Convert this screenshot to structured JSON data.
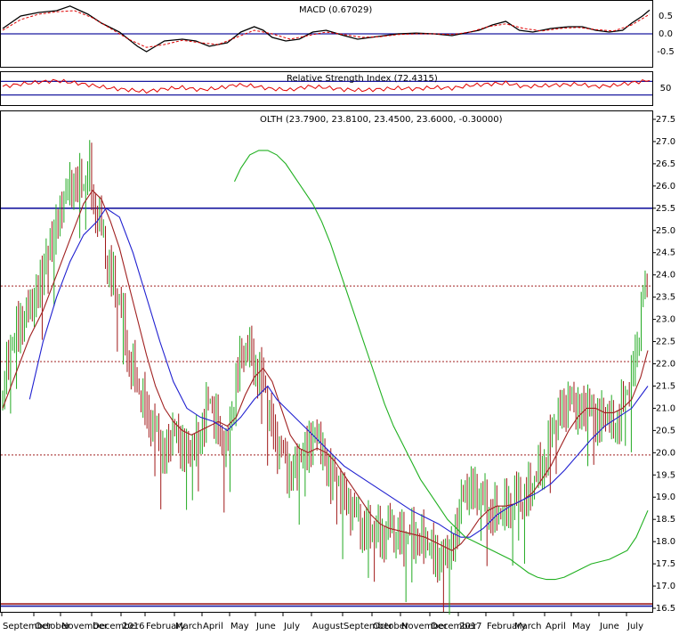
{
  "chart_data": [
    {
      "panel": "macd",
      "type": "line",
      "title": "MACD (0.67029)",
      "ylim": [
        -0.85,
        0.85
      ],
      "yticks": [
        "0.5",
        "0.0",
        "-0.5"
      ],
      "zero_line": 0,
      "series": [
        {
          "role": "macd",
          "color": "#000000",
          "x": [
            0,
            20,
            40,
            60,
            75,
            95,
            110,
            130,
            150,
            160,
            180,
            200,
            215,
            230,
            250,
            265,
            280,
            290,
            300,
            315,
            330,
            345,
            360,
            380,
            395,
            410,
            425,
            440,
            460,
            480,
            500,
            520,
            530,
            545,
            560,
            575,
            590,
            610,
            630,
            645,
            660,
            675,
            690,
            700,
            712,
            720
          ],
          "y": [
            0.15,
            0.5,
            0.6,
            0.65,
            0.78,
            0.55,
            0.3,
            0.05,
            -0.35,
            -0.5,
            -0.2,
            -0.15,
            -0.2,
            -0.35,
            -0.25,
            0.05,
            0.2,
            0.1,
            -0.1,
            -0.2,
            -0.15,
            0.05,
            0.1,
            -0.05,
            -0.15,
            -0.1,
            -0.05,
            0.0,
            0.02,
            0.0,
            -0.05,
            0.05,
            0.1,
            0.25,
            0.35,
            0.1,
            0.05,
            0.15,
            0.2,
            0.2,
            0.1,
            0.05,
            0.1,
            0.3,
            0.5,
            0.67
          ]
        },
        {
          "role": "signal",
          "color": "#e00000",
          "x": [
            0,
            20,
            40,
            60,
            80,
            100,
            120,
            140,
            160,
            180,
            200,
            220,
            240,
            260,
            280,
            300,
            320,
            340,
            360,
            380,
            400,
            420,
            440,
            460,
            480,
            500,
            520,
            540,
            560,
            580,
            600,
            620,
            640,
            660,
            680,
            700,
            720
          ],
          "y": [
            0.1,
            0.4,
            0.55,
            0.62,
            0.65,
            0.45,
            0.15,
            -0.15,
            -0.38,
            -0.3,
            -0.18,
            -0.25,
            -0.3,
            -0.1,
            0.1,
            0.0,
            -0.15,
            -0.05,
            0.05,
            -0.02,
            -0.1,
            -0.08,
            -0.02,
            0.0,
            0.0,
            -0.02,
            0.05,
            0.2,
            0.28,
            0.15,
            0.08,
            0.15,
            0.18,
            0.12,
            0.08,
            0.25,
            0.55
          ]
        }
      ]
    },
    {
      "panel": "rsi",
      "type": "line",
      "title": "Relative Strength Index (72.4315)",
      "ylim": [
        0,
        100
      ],
      "yticks": [
        "50"
      ],
      "levels": [
        70,
        30
      ],
      "series": [
        {
          "role": "rsi",
          "color": "#e00000",
          "x": [
            0,
            20,
            40,
            60,
            80,
            100,
            120,
            140,
            160,
            180,
            200,
            220,
            240,
            260,
            280,
            300,
            320,
            340,
            360,
            380,
            400,
            420,
            440,
            460,
            480,
            500,
            520,
            540,
            560,
            580,
            600,
            620,
            640,
            660,
            680,
            700,
            720
          ],
          "y": [
            55,
            62,
            68,
            72,
            66,
            58,
            50,
            45,
            40,
            48,
            52,
            45,
            50,
            60,
            56,
            48,
            45,
            55,
            52,
            46,
            44,
            47,
            50,
            48,
            52,
            50,
            58,
            62,
            65,
            55,
            57,
            60,
            62,
            55,
            58,
            66,
            72.4
          ]
        }
      ]
    },
    {
      "panel": "price",
      "type": "ohlc",
      "title": "OLTH (23.7900, 23.8100, 23.4500, 23.6000, -0.30000)",
      "ylim": [
        16.4,
        27.7
      ],
      "yticks": [
        "27.5",
        "27.0",
        "26.5",
        "26.0",
        "25.5",
        "25.0",
        "24.5",
        "24.0",
        "23.5",
        "23.0",
        "22.5",
        "22.0",
        "21.5",
        "21.0",
        "20.5",
        "20.0",
        "19.5",
        "19.0",
        "18.5",
        "18.0",
        "17.5",
        "17.0",
        "16.5"
      ],
      "xticks": [
        "September",
        "October",
        "November",
        "December",
        "2016",
        "February",
        "March",
        "April",
        "May",
        "June",
        "July",
        "August",
        "September",
        "October",
        "November",
        "December",
        "2017",
        "February",
        "March",
        "April",
        "May",
        "June",
        "July"
      ],
      "xtick_pos": [
        2,
        38,
        68,
        103,
        136,
        163,
        196,
        227,
        258,
        287,
        318,
        350,
        385,
        418,
        450,
        483,
        515,
        546,
        577,
        612,
        642,
        673,
        704
      ],
      "hlines": [
        {
          "value": 25.5,
          "color": "#1a1aa0",
          "style": "solid"
        },
        {
          "value": 23.75,
          "color": "#a02020",
          "style": "dotted"
        },
        {
          "value": 22.05,
          "color": "#a02020",
          "style": "dotted"
        },
        {
          "value": 19.95,
          "color": "#a02020",
          "style": "dotted"
        },
        {
          "value": 16.6,
          "color": "#a02020",
          "style": "solid"
        },
        {
          "value": 16.55,
          "color": "#1a1aa0",
          "style": "solid"
        }
      ],
      "close_path": {
        "x": [
          0,
          10,
          20,
          30,
          40,
          50,
          60,
          70,
          80,
          90,
          96,
          100,
          110,
          118,
          125,
          132,
          140,
          150,
          160,
          170,
          180,
          190,
          200,
          210,
          220,
          230,
          240,
          250,
          260,
          270,
          280,
          290,
          300,
          310,
          320,
          330,
          340,
          350,
          360,
          370,
          380,
          390,
          400,
          410,
          420,
          430,
          440,
          450,
          460,
          470,
          480,
          490,
          500,
          510,
          520,
          530,
          540,
          550,
          560,
          570,
          580,
          590,
          600,
          610,
          620,
          630,
          640,
          650,
          660,
          670,
          680,
          690,
          700,
          706,
          712,
          718
        ],
        "y": [
          21.4,
          22.5,
          23.0,
          23.2,
          23.8,
          24.5,
          25.2,
          25.8,
          26.2,
          26.0,
          26.5,
          25.8,
          25.0,
          24.2,
          23.8,
          23.2,
          22.2,
          21.5,
          21.0,
          20.5,
          20.0,
          20.5,
          20.2,
          20.0,
          20.5,
          21.2,
          20.6,
          20.0,
          21.8,
          22.4,
          22.1,
          21.6,
          20.6,
          20.0,
          19.6,
          19.8,
          20.3,
          20.4,
          19.8,
          19.4,
          19.1,
          18.7,
          18.4,
          18.3,
          18.2,
          18.3,
          18.2,
          18.1,
          18.2,
          18.0,
          17.8,
          17.6,
          17.9,
          18.9,
          19.3,
          19.1,
          18.8,
          18.6,
          18.8,
          19.0,
          19.0,
          19.3,
          19.7,
          20.4,
          21.0,
          21.2,
          21.0,
          21.1,
          20.8,
          20.9,
          20.6,
          21.1,
          21.7,
          22.5,
          23.5,
          23.6
        ]
      },
      "series": [
        {
          "role": "ma-short",
          "color": "#a02020",
          "x": [
            0,
            15,
            30,
            45,
            60,
            75,
            90,
            100,
            110,
            120,
            130,
            140,
            150,
            160,
            170,
            180,
            190,
            200,
            210,
            220,
            230,
            240,
            250,
            260,
            270,
            280,
            290,
            300,
            310,
            320,
            330,
            340,
            350,
            360,
            370,
            380,
            390,
            400,
            410,
            420,
            430,
            440,
            450,
            460,
            470,
            480,
            490,
            500,
            510,
            520,
            530,
            540,
            550,
            560,
            570,
            580,
            590,
            600,
            610,
            620,
            630,
            640,
            650,
            660,
            670,
            680,
            690,
            700,
            710,
            718
          ],
          "y": [
            21.0,
            21.8,
            22.6,
            23.2,
            24.0,
            24.8,
            25.6,
            25.9,
            25.7,
            25.2,
            24.6,
            23.8,
            23.0,
            22.2,
            21.5,
            21.0,
            20.7,
            20.5,
            20.4,
            20.5,
            20.6,
            20.7,
            20.6,
            20.8,
            21.3,
            21.7,
            21.9,
            21.6,
            21.0,
            20.4,
            20.1,
            20.0,
            20.1,
            20.0,
            19.8,
            19.5,
            19.2,
            18.9,
            18.6,
            18.4,
            18.3,
            18.25,
            18.2,
            18.15,
            18.1,
            18.0,
            17.9,
            17.8,
            17.95,
            18.2,
            18.5,
            18.7,
            18.8,
            18.8,
            18.85,
            18.95,
            19.1,
            19.4,
            19.7,
            20.1,
            20.5,
            20.8,
            21.0,
            21.0,
            20.9,
            20.9,
            21.0,
            21.2,
            21.7,
            22.3
          ]
        },
        {
          "role": "ma-medium",
          "color": "#2020d0",
          "x": [
            30,
            45,
            60,
            75,
            90,
            105,
            115,
            130,
            145,
            160,
            175,
            190,
            205,
            220,
            235,
            250,
            265,
            280,
            295,
            305,
            320,
            335,
            350,
            365,
            380,
            395,
            410,
            425,
            440,
            455,
            470,
            485,
            500,
            510,
            520,
            535,
            550,
            565,
            580,
            595,
            610,
            625,
            640,
            655,
            670,
            685,
            700,
            718
          ],
          "y": [
            21.2,
            22.5,
            23.5,
            24.3,
            24.9,
            25.2,
            25.5,
            25.3,
            24.5,
            23.5,
            22.5,
            21.6,
            21.0,
            20.8,
            20.7,
            20.5,
            20.8,
            21.2,
            21.5,
            21.2,
            20.9,
            20.6,
            20.3,
            20.0,
            19.7,
            19.5,
            19.3,
            19.1,
            18.9,
            18.7,
            18.55,
            18.4,
            18.2,
            18.1,
            18.1,
            18.3,
            18.6,
            18.8,
            18.95,
            19.1,
            19.3,
            19.6,
            19.95,
            20.3,
            20.6,
            20.8,
            21.0,
            21.5
          ]
        },
        {
          "role": "ma-long",
          "color": "#20b020",
          "x": [
            258,
            265,
            275,
            285,
            295,
            305,
            315,
            325,
            335,
            345,
            355,
            365,
            375,
            385,
            395,
            405,
            415,
            425,
            435,
            445,
            455,
            465,
            475,
            485,
            495,
            505,
            515,
            525,
            535,
            545,
            555,
            565,
            575,
            585,
            595,
            605,
            615,
            625,
            635,
            645,
            655,
            665,
            675,
            685,
            695,
            705,
            718
          ],
          "y": [
            26.1,
            26.4,
            26.7,
            26.8,
            26.8,
            26.7,
            26.5,
            26.2,
            25.9,
            25.6,
            25.2,
            24.7,
            24.1,
            23.5,
            22.9,
            22.3,
            21.7,
            21.1,
            20.6,
            20.2,
            19.8,
            19.4,
            19.1,
            18.8,
            18.5,
            18.3,
            18.1,
            18.0,
            17.9,
            17.8,
            17.7,
            17.6,
            17.45,
            17.3,
            17.2,
            17.15,
            17.15,
            17.2,
            17.3,
            17.4,
            17.5,
            17.55,
            17.6,
            17.7,
            17.8,
            18.1,
            18.7
          ]
        }
      ]
    }
  ]
}
